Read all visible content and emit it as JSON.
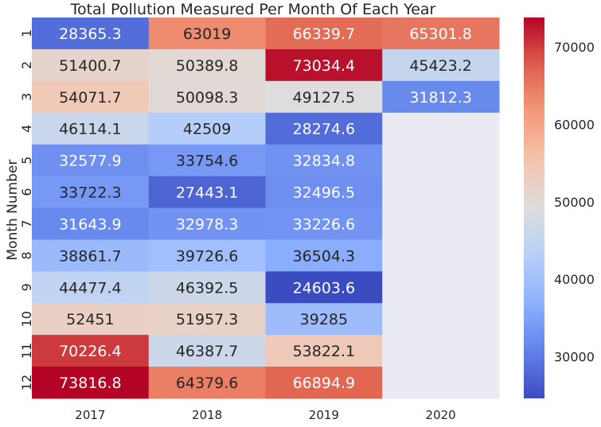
{
  "chart_data": {
    "type": "heatmap",
    "title": "Total Pollution Measured Per Month Of Each Year",
    "xlabel": "",
    "ylabel": "Month Number",
    "x_categories": [
      "2017",
      "2018",
      "2019",
      "2020"
    ],
    "y_categories": [
      "1",
      "2",
      "3",
      "4",
      "5",
      "6",
      "7",
      "8",
      "9",
      "10",
      "11",
      "12"
    ],
    "values": [
      [
        28365.3,
        63019,
        66339.7,
        65301.8
      ],
      [
        51400.7,
        50389.8,
        73034.4,
        45423.2
      ],
      [
        54071.7,
        50098.3,
        49127.5,
        31812.3
      ],
      [
        46114.1,
        42509,
        28274.6,
        null
      ],
      [
        32577.9,
        33754.6,
        32834.8,
        null
      ],
      [
        33722.3,
        27443.1,
        32496.5,
        null
      ],
      [
        31643.9,
        32978.3,
        33226.6,
        null
      ],
      [
        38861.7,
        39726.6,
        36504.3,
        null
      ],
      [
        44477.4,
        46392.5,
        24603.6,
        null
      ],
      [
        52451,
        51957.3,
        39285,
        null
      ],
      [
        70226.4,
        46387.7,
        53822.1,
        null
      ],
      [
        73816.8,
        64379.6,
        66894.9,
        null
      ]
    ],
    "value_labels": [
      [
        "28365.3",
        "63019",
        "66339.7",
        "65301.8"
      ],
      [
        "51400.7",
        "50389.8",
        "73034.4",
        "45423.2"
      ],
      [
        "54071.7",
        "50098.3",
        "49127.5",
        "31812.3"
      ],
      [
        "46114.1",
        "42509",
        "28274.6",
        ""
      ],
      [
        "32577.9",
        "33754.6",
        "32834.8",
        ""
      ],
      [
        "33722.3",
        "27443.1",
        "32496.5",
        ""
      ],
      [
        "31643.9",
        "32978.3",
        "33226.6",
        ""
      ],
      [
        "38861.7",
        "39726.6",
        "36504.3",
        ""
      ],
      [
        "44477.4",
        "46392.5",
        "24603.6",
        ""
      ],
      [
        "52451",
        "51957.3",
        "39285",
        ""
      ],
      [
        "70226.4",
        "46387.7",
        "53822.1",
        ""
      ],
      [
        "73816.8",
        "64379.6",
        "66894.9",
        ""
      ]
    ],
    "colormap": "coolwarm",
    "vmin": 24603.6,
    "vmax": 73816.8,
    "colorbar_ticks": [
      "30000",
      "40000",
      "50000",
      "60000",
      "70000"
    ],
    "missing_color": "#eaeaf2",
    "grid": false,
    "colorbar_position": "right"
  }
}
